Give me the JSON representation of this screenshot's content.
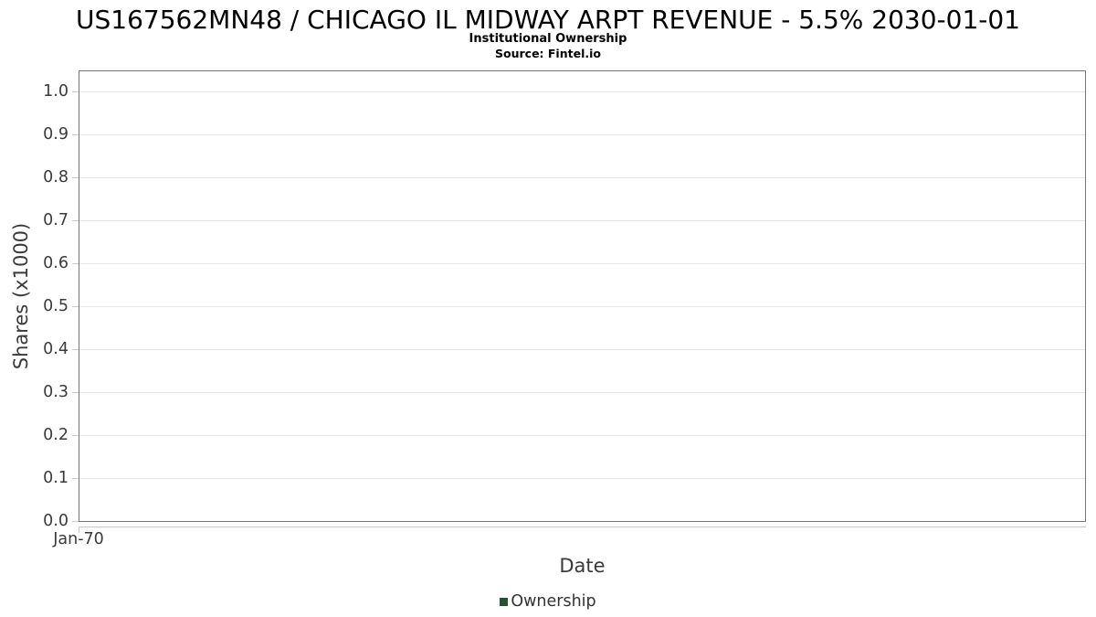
{
  "header": {
    "title": "US167562MN48 / CHICAGO IL MIDWAY ARPT REVENUE - 5.5% 2030-01-01",
    "subtitle": "Institutional Ownership",
    "source": "Source: Fintel.io"
  },
  "colors": {
    "plot_border": "#757575",
    "gridline": "#e8e8e8",
    "axis_line": "#c9c9c9",
    "text": "#3a3a3a",
    "legend_marker_green": "#23552d"
  },
  "legend": {
    "items": [
      {
        "label": "Ownership",
        "color": "#23552d"
      }
    ]
  },
  "chart_data": {
    "type": "line",
    "title": "US167562MN48 / CHICAGO IL MIDWAY ARPT REVENUE - 5.5% 2030-01-01",
    "subtitle": "Institutional Ownership",
    "source": "Source: Fintel.io",
    "xlabel": "Date",
    "ylabel": "Shares (x1000)",
    "x_tick_labels": [
      "Jan-70"
    ],
    "y_ticks": [
      0.0,
      0.1,
      0.2,
      0.3,
      0.4,
      0.5,
      0.6,
      0.7,
      0.8,
      0.9,
      1.0
    ],
    "y_tick_labels": [
      "0.0",
      "0.1",
      "0.2",
      "0.3",
      "0.4",
      "0.5",
      "0.6",
      "0.7",
      "0.8",
      "0.9",
      "1.0"
    ],
    "ylim": [
      0,
      1.05
    ],
    "grid": "horizontal",
    "legend_position": "bottom-center",
    "series": [
      {
        "name": "Ownership",
        "color": "#23552d",
        "x": [],
        "values": []
      }
    ]
  }
}
